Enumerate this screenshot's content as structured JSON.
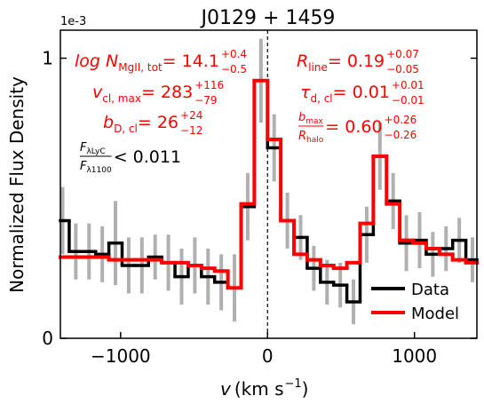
{
  "chart_data": {
    "type": "step",
    "title": "J0129 + 1459",
    "xlabel": {
      "var": "v",
      "unit": "(km s",
      "exp": "−1",
      "close": ")"
    },
    "ylabel": "Normalized Flux Density",
    "y_offset_label": "1e-3",
    "xlim": [
      -1410,
      1425
    ],
    "ylim": [
      0,
      1.1
    ],
    "xticks": [
      {
        "value": -1000,
        "label": "−1000"
      },
      0,
      1000
    ],
    "yticks": [
      0,
      1
    ],
    "vline": 0,
    "legend": "lower right",
    "error_color": "#b0b0b0",
    "x": [
      -1395,
      -1305,
      -1215,
      -1125,
      -1035,
      -945,
      -855,
      -765,
      -675,
      -585,
      -495,
      -405,
      -315,
      -225,
      -135,
      -45,
      45,
      135,
      225,
      315,
      405,
      495,
      585,
      675,
      765,
      855,
      945,
      1035,
      1125,
      1215,
      1305,
      1395
    ],
    "series": [
      {
        "name": "Data",
        "color": "#000000",
        "values": [
          0.42,
          0.31,
          0.31,
          0.3,
          0.34,
          0.26,
          0.26,
          0.29,
          0.27,
          0.22,
          0.26,
          0.22,
          0.2,
          0.18,
          0.47,
          0.92,
          0.68,
          0.42,
          0.36,
          0.25,
          0.2,
          0.19,
          0.13,
          0.37,
          0.65,
          0.49,
          0.34,
          0.35,
          0.3,
          0.32,
          0.35,
          0.28
        ],
        "errors": [
          0.12,
          0.1,
          0.1,
          0.1,
          0.15,
          0.1,
          0.1,
          0.08,
          0.1,
          0.1,
          0.1,
          0.1,
          0.1,
          0.12,
          0.12,
          0.15,
          0.12,
          0.1,
          0.08,
          0.08,
          0.08,
          0.08,
          0.08,
          0.1,
          0.12,
          0.1,
          0.1,
          0.1,
          0.08,
          0.08,
          0.08,
          0.08
        ]
      },
      {
        "name": "Model",
        "color": "#ff0000",
        "values": [
          0.29,
          0.29,
          0.29,
          0.29,
          0.28,
          0.28,
          0.28,
          0.28,
          0.27,
          0.27,
          0.26,
          0.25,
          0.24,
          0.18,
          0.48,
          0.92,
          0.71,
          0.42,
          0.3,
          0.28,
          0.26,
          0.25,
          0.27,
          0.41,
          0.65,
          0.48,
          0.35,
          0.34,
          0.32,
          0.3,
          0.28,
          0.27
        ]
      }
    ],
    "annotations": [
      {
        "kind": "inline",
        "color": "#ff0000",
        "base": "log N",
        "base_sub": "MgII, tot",
        "eq": " = 14.1",
        "sup": "+0.4",
        "sub": "−0.5"
      },
      {
        "kind": "inline",
        "color": "#ff0000",
        "base": "v",
        "base_sub": "cl, max",
        "eq": " = 283",
        "sup": "+116",
        "sub": "−79"
      },
      {
        "kind": "inline",
        "color": "#ff0000",
        "base": "b",
        "base_sub": "D, cl",
        "eq": " = 26",
        "sup": "+24",
        "sub": "−12"
      },
      {
        "kind": "fraction",
        "color": "#000000",
        "num": "F",
        "num_sub": "λLyC",
        "den": "F",
        "den_sub": "λ1100",
        "eq": " < 0.011"
      },
      {
        "kind": "inline",
        "color": "#ff0000",
        "base": "R",
        "base_sub": "line",
        "eq": " = 0.19",
        "sup": "+0.07",
        "sub": "−0.05"
      },
      {
        "kind": "inline",
        "color": "#ff0000",
        "base": "τ",
        "base_sub": "d, cl",
        "eq": " = 0.01",
        "sup": "+0.01",
        "sub": "−0.01"
      },
      {
        "kind": "fraction",
        "color": "#ff0000",
        "num": "b",
        "num_sub": "max",
        "den": "R",
        "den_sub": "halo",
        "eq": " = 0.60",
        "sup": "+0.26",
        "sub": "−0.26"
      }
    ]
  }
}
